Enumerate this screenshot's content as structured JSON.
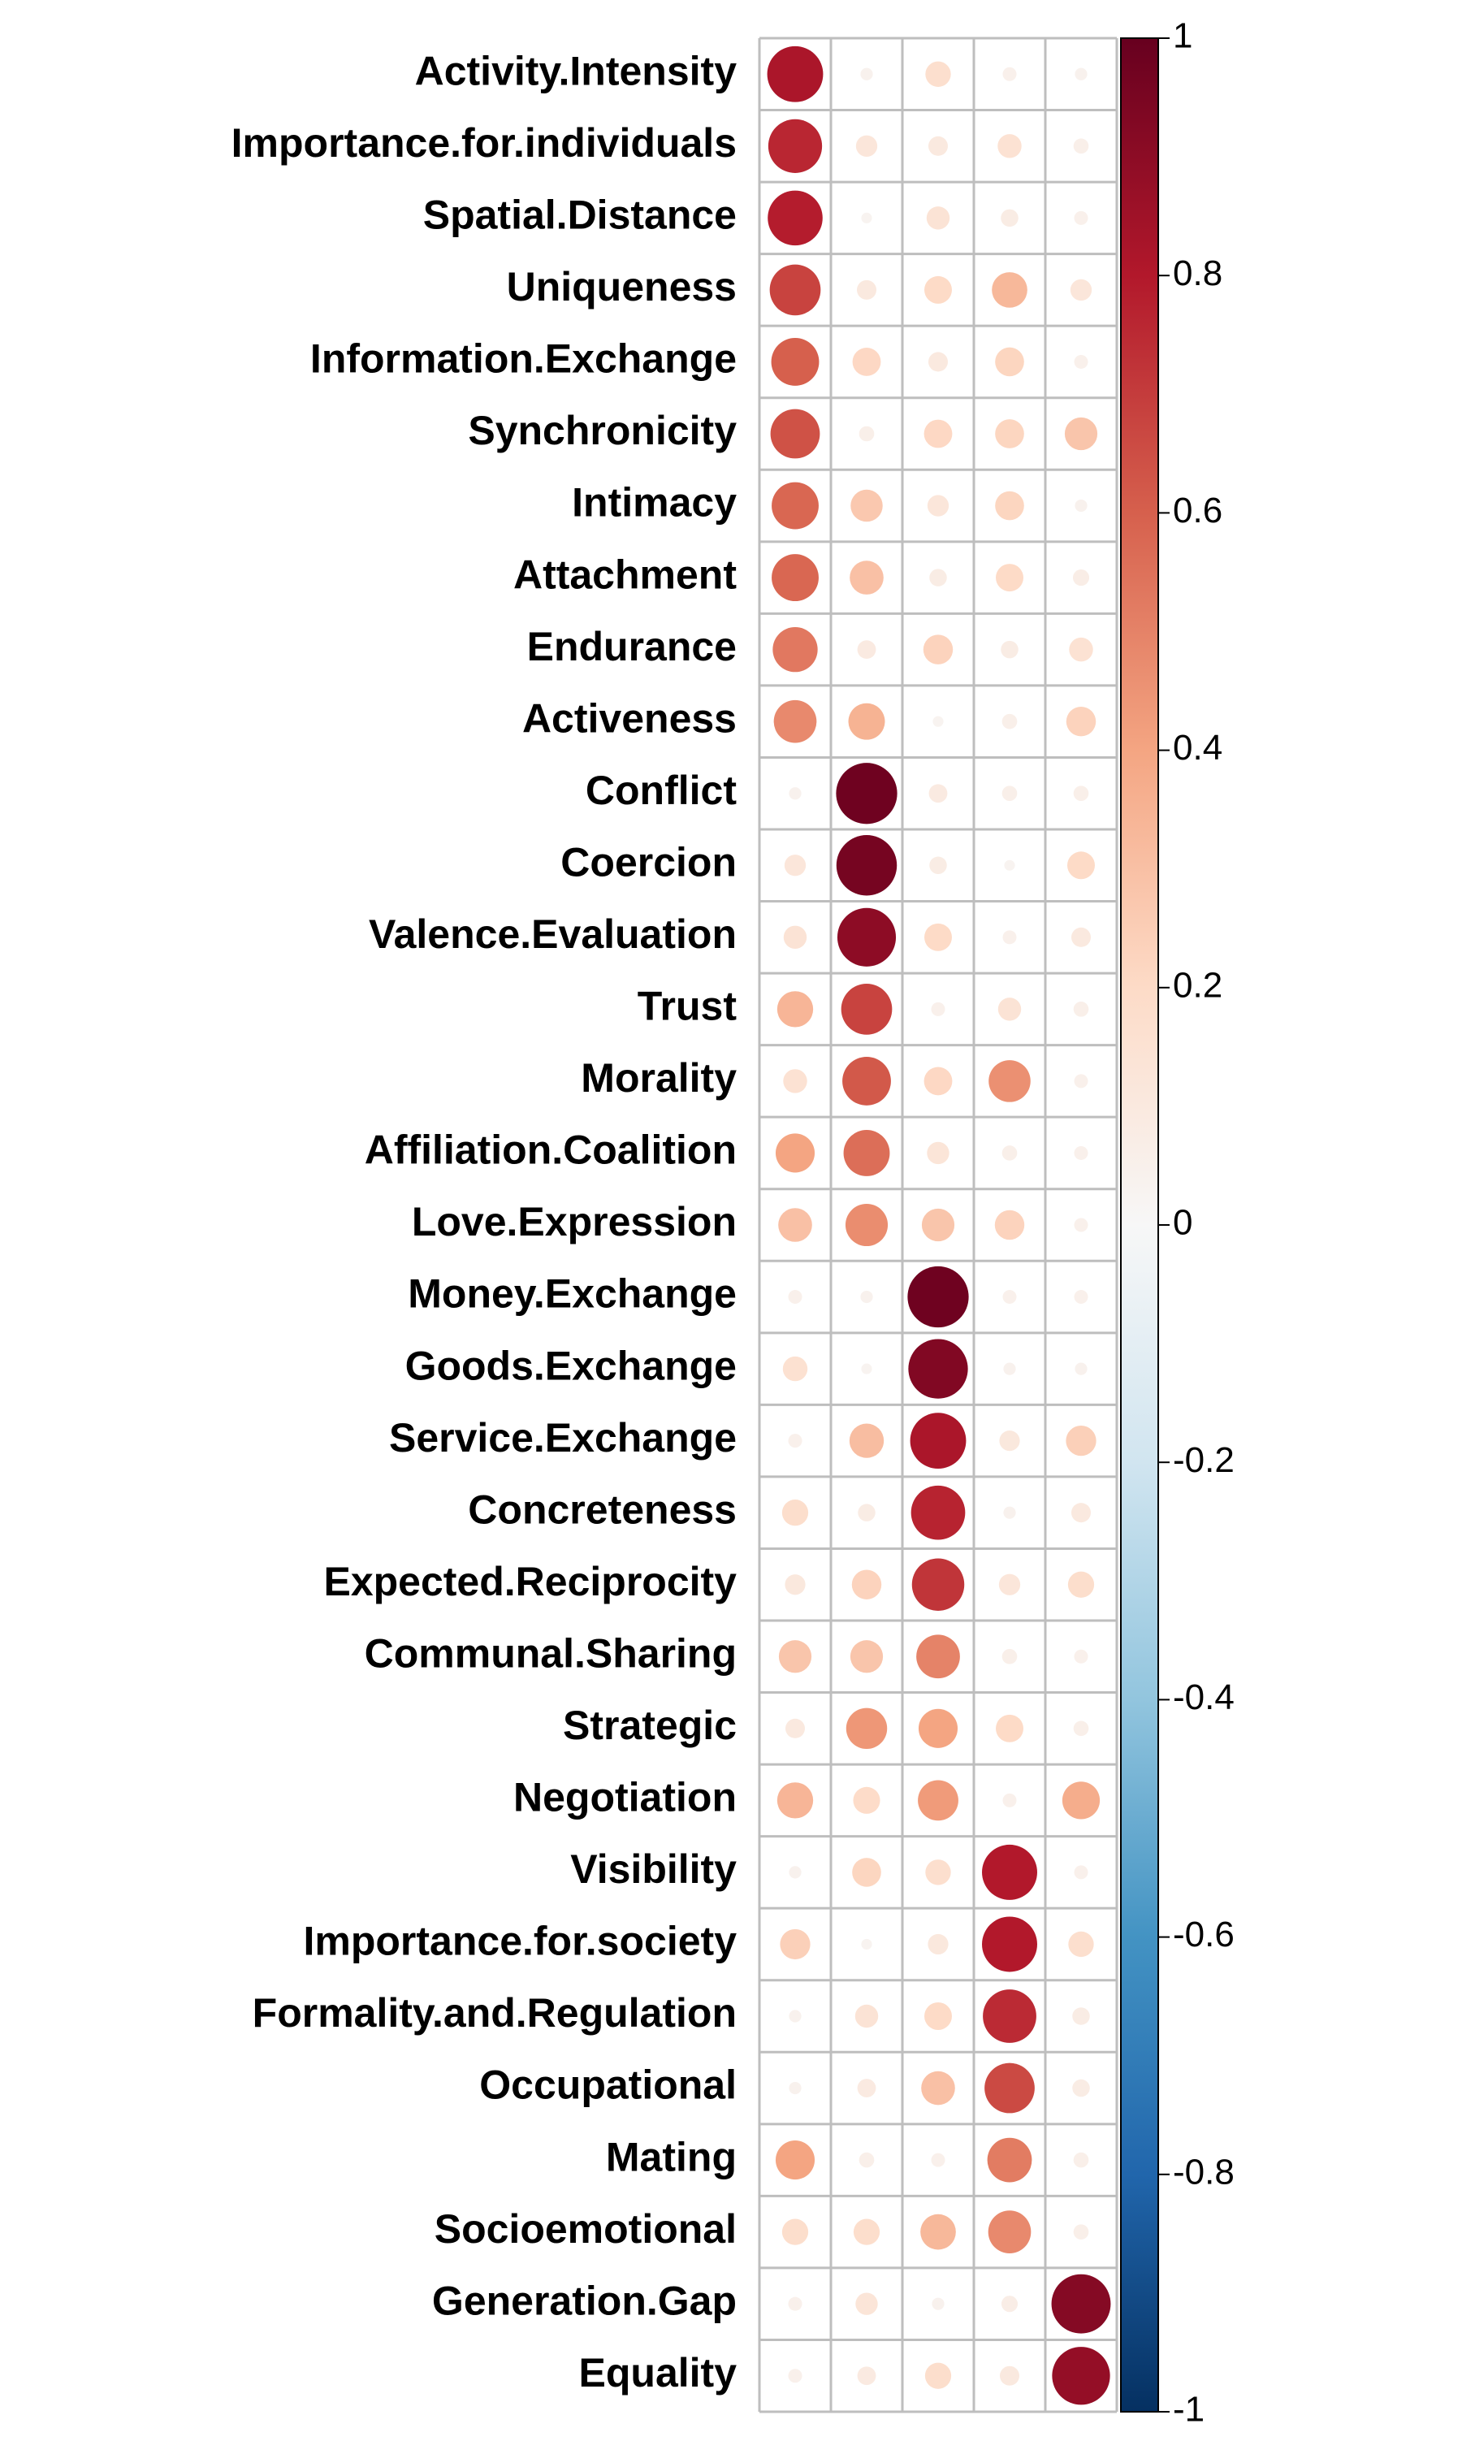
{
  "chart_data": {
    "type": "heatmap",
    "subtype": "correlation-circle-plot",
    "title": "",
    "xlabel": "",
    "ylabel": "",
    "rows": [
      "Activity.Intensity",
      "Importance.for.individuals",
      "Spatial.Distance",
      "Uniqueness",
      "Information.Exchange",
      "Synchronicity",
      "Intimacy",
      "Attachment",
      "Endurance",
      "Activeness",
      "Conflict",
      "Coercion",
      "Valence.Evaluation",
      "Trust",
      "Morality",
      "Affiliation.Coalition",
      "Love.Expression",
      "Money.Exchange",
      "Goods.Exchange",
      "Service.Exchange",
      "Concreteness",
      "Expected.Reciprocity",
      "Communal.Sharing",
      "Strategic",
      "Negotiation",
      "Visibility",
      "Importance.for.society",
      "Formality.and.Regulation",
      "Occupational",
      "Mating",
      "Socioemotional",
      "Generation.Gap",
      "Equality"
    ],
    "column_count": 5,
    "values": [
      [
        0.82,
        0.04,
        0.17,
        0.05,
        0.04
      ],
      [
        0.76,
        0.12,
        0.1,
        0.15,
        0.06
      ],
      [
        0.79,
        0.03,
        0.14,
        0.08,
        0.05
      ],
      [
        0.68,
        0.1,
        0.2,
        0.33,
        0.12
      ],
      [
        0.6,
        0.21,
        0.1,
        0.22,
        0.05
      ],
      [
        0.64,
        0.06,
        0.21,
        0.22,
        0.28
      ],
      [
        0.58,
        0.27,
        0.12,
        0.22,
        0.04
      ],
      [
        0.58,
        0.3,
        0.08,
        0.2,
        0.07
      ],
      [
        0.53,
        0.09,
        0.23,
        0.08,
        0.15
      ],
      [
        0.48,
        0.35,
        0.03,
        0.06,
        0.23
      ],
      [
        0.04,
        0.98,
        0.09,
        0.06,
        0.06
      ],
      [
        0.12,
        0.96,
        0.08,
        0.03,
        0.2
      ],
      [
        0.14,
        0.9,
        0.2,
        0.05,
        0.1
      ],
      [
        0.34,
        0.68,
        0.05,
        0.14,
        0.06
      ],
      [
        0.15,
        0.62,
        0.21,
        0.46,
        0.05
      ],
      [
        0.4,
        0.56,
        0.13,
        0.06,
        0.05
      ],
      [
        0.3,
        0.47,
        0.28,
        0.23,
        0.05
      ],
      [
        0.05,
        0.04,
        0.98,
        0.05,
        0.05
      ],
      [
        0.16,
        0.03,
        0.93,
        0.04,
        0.04
      ],
      [
        0.05,
        0.31,
        0.82,
        0.11,
        0.24
      ],
      [
        0.18,
        0.08,
        0.77,
        0.04,
        0.1
      ],
      [
        0.11,
        0.23,
        0.72,
        0.12,
        0.18
      ],
      [
        0.28,
        0.28,
        0.5,
        0.06,
        0.05
      ],
      [
        0.1,
        0.44,
        0.4,
        0.2,
        0.06
      ],
      [
        0.34,
        0.19,
        0.43,
        0.05,
        0.37
      ],
      [
        0.04,
        0.22,
        0.17,
        0.8,
        0.05
      ],
      [
        0.24,
        0.03,
        0.11,
        0.8,
        0.17
      ],
      [
        0.04,
        0.14,
        0.2,
        0.75,
        0.08
      ],
      [
        0.04,
        0.09,
        0.3,
        0.66,
        0.08
      ],
      [
        0.4,
        0.06,
        0.05,
        0.52,
        0.06
      ],
      [
        0.18,
        0.18,
        0.33,
        0.48,
        0.06
      ],
      [
        0.05,
        0.13,
        0.04,
        0.07,
        0.92
      ],
      [
        0.05,
        0.09,
        0.18,
        0.1,
        0.88
      ]
    ],
    "colorbar": {
      "range": [
        -1,
        1
      ],
      "ticks": [
        "1",
        "0.8",
        "0.6",
        "0.4",
        "0.2",
        "0",
        "-0.2",
        "-0.4",
        "-0.6",
        "-0.8",
        "-1"
      ],
      "colors": {
        "neg1": "#053061",
        "neg08": "#2166ac",
        "neg06": "#4393c3",
        "neg04": "#92c5de",
        "neg02": "#d1e5f0",
        "zero": "#f7f7f7",
        "pos02": "#fddbc7",
        "pos04": "#f4a582",
        "pos06": "#d6604d",
        "pos08": "#b2182b",
        "pos1": "#67001f"
      }
    },
    "grid": true,
    "grid_color": "#bebebe",
    "legend_position": "right"
  }
}
